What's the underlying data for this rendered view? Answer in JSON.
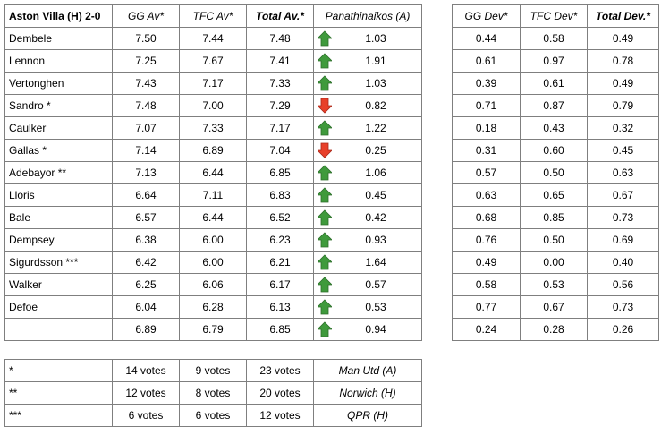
{
  "ratings_table": {
    "header": [
      "Aston Villa (H) 2-0",
      "GG Av*",
      "TFC Av*",
      "Total Av.*",
      "Panathinaikos (A)"
    ],
    "rows": [
      [
        "Dembele",
        "7.50",
        "7.44",
        "7.48",
        "1.03"
      ],
      [
        "Lennon",
        "7.25",
        "7.67",
        "7.41",
        "1.91"
      ],
      [
        "Vertonghen",
        "7.43",
        "7.17",
        "7.33",
        "1.03"
      ],
      [
        "Sandro *",
        "7.48",
        "7.00",
        "7.29",
        "0.82"
      ],
      [
        "Caulker",
        "7.07",
        "7.33",
        "7.17",
        "1.22"
      ],
      [
        "Gallas *",
        "7.14",
        "6.89",
        "7.04",
        "0.25"
      ],
      [
        "Adebayor **",
        "7.13",
        "6.44",
        "6.85",
        "1.06"
      ],
      [
        "Lloris",
        "6.64",
        "7.11",
        "6.83",
        "0.45"
      ],
      [
        "Bale",
        "6.57",
        "6.44",
        "6.52",
        "0.42"
      ],
      [
        "Dempsey",
        "6.38",
        "6.00",
        "6.23",
        "0.93"
      ],
      [
        "Sigurdsson ***",
        "6.42",
        "6.00",
        "6.21",
        "1.64"
      ],
      [
        "Walker",
        "6.25",
        "6.06",
        "6.17",
        "0.57"
      ],
      [
        "Defoe",
        "6.04",
        "6.28",
        "6.13",
        "0.53"
      ],
      [
        null,
        "6.89",
        "6.79",
        "6.85",
        "0.94"
      ]
    ]
  },
  "deviation_table": {
    "header": [
      "GG Dev*",
      "TFC Dev*",
      "Total Dev.*"
    ],
    "rows": [
      [
        "0.44",
        "0.58",
        "0.49"
      ],
      [
        "0.61",
        "0.97",
        "0.78"
      ],
      [
        "0.39",
        "0.61",
        "0.49"
      ],
      [
        "0.71",
        "0.87",
        "0.79"
      ],
      [
        "0.18",
        "0.43",
        "0.32"
      ],
      [
        "0.31",
        "0.60",
        "0.45"
      ],
      [
        "0.57",
        "0.50",
        "0.63"
      ],
      [
        "0.63",
        "0.65",
        "0.67"
      ],
      [
        "0.68",
        "0.85",
        "0.73"
      ],
      [
        "0.76",
        "0.50",
        "0.69"
      ],
      [
        "0.49",
        "0.00",
        "0.40"
      ],
      [
        "0.58",
        "0.53",
        "0.56"
      ],
      [
        "0.77",
        "0.67",
        "0.73"
      ],
      [
        "0.24",
        "0.28",
        "0.26"
      ]
    ]
  },
  "footnote_table": {
    "rows": [
      [
        "*",
        "14 votes",
        "9 votes",
        "23 votes",
        "Man Utd (A)"
      ],
      [
        "**",
        "12 votes",
        "8 votes",
        "20 votes",
        "Norwich (H)"
      ],
      [
        "***",
        "6 votes",
        "6 votes",
        "12 votes",
        "QPR (H)"
      ]
    ]
  }
}
